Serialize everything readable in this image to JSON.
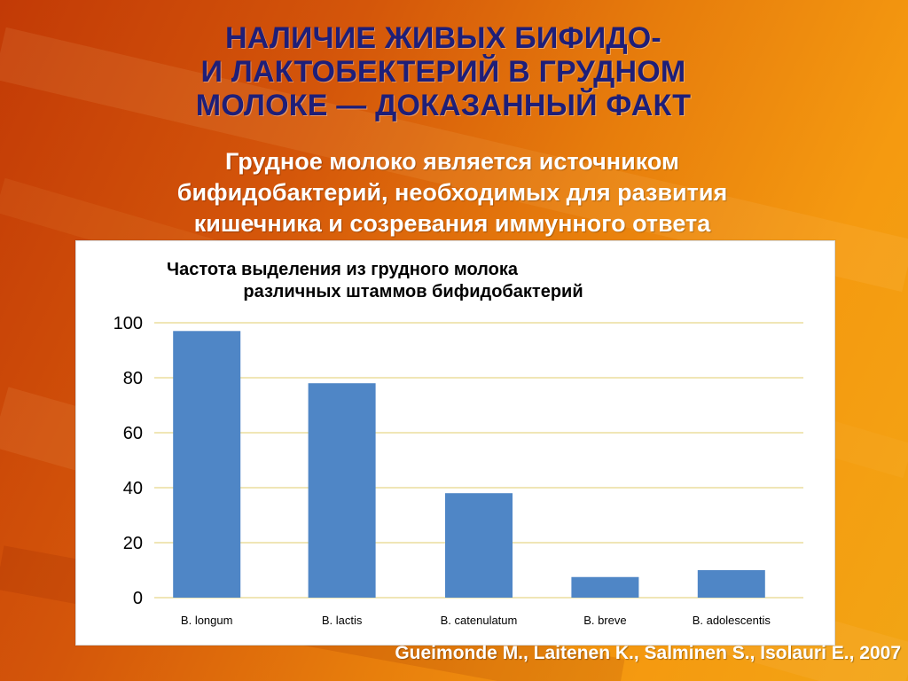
{
  "slide": {
    "title": "НАЛИЧИЕ ЖИВЫХ  БИФИДО-\nИ ЛАКТОБЕКТЕРИЙ В ГРУДНОМ\nМОЛОКЕ — ДОКАЗАННЫЙ ФАКТ",
    "subtitle": "Грудное молоко является источником\nбифидобактерий, необходимых для развития\nкишечника и созревания иммунного ответа",
    "citation": "Gueimonde M., Laitenen K., Salminen S., Isolauri E., 2007",
    "title_color": "#1e1e78",
    "subtitle_color": "#ffffff"
  },
  "chart_data": {
    "type": "bar",
    "title": "Частота выделения из грудного молока\n различных штаммов бифидобактерий",
    "categories": [
      "B. longum",
      "B. lactis",
      "B. catenulatum",
      "B. breve",
      "B. adolescentis"
    ],
    "values": [
      97,
      78,
      38,
      7.5,
      10
    ],
    "ylim": [
      0,
      100
    ],
    "yticks": [
      "0",
      "20",
      "40",
      "60",
      "80",
      "100"
    ],
    "xlabel": "",
    "ylabel": "",
    "bar_color": "#4f86c6",
    "grid_color": "#e8d88a",
    "grid": true,
    "legend": "none"
  }
}
